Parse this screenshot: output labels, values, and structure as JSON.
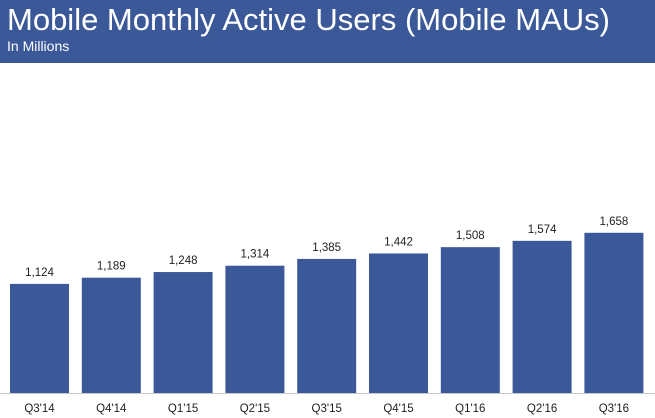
{
  "header": {
    "title": "Mobile Monthly Active Users (Mobile MAUs)",
    "subtitle": "In Millions"
  },
  "colors": {
    "header_bg": "#3b5998",
    "bar": "#3b5998",
    "axis": "#c8c8c8"
  },
  "chart_data": {
    "type": "bar",
    "title": "Mobile Monthly Active Users (Mobile MAUs)",
    "subtitle": "In Millions",
    "xlabel": "",
    "ylabel": "",
    "categories": [
      "Q3'14",
      "Q4'14",
      "Q1'15",
      "Q2'15",
      "Q3'15",
      "Q4'15",
      "Q1'16",
      "Q2'16",
      "Q3'16"
    ],
    "values": [
      1124,
      1189,
      1248,
      1314,
      1385,
      1442,
      1508,
      1574,
      1658
    ],
    "value_labels": [
      "1,124",
      "1,189",
      "1,248",
      "1,314",
      "1,385",
      "1,442",
      "1,508",
      "1,574",
      "1,658"
    ],
    "grid": false,
    "legend": "none"
  }
}
